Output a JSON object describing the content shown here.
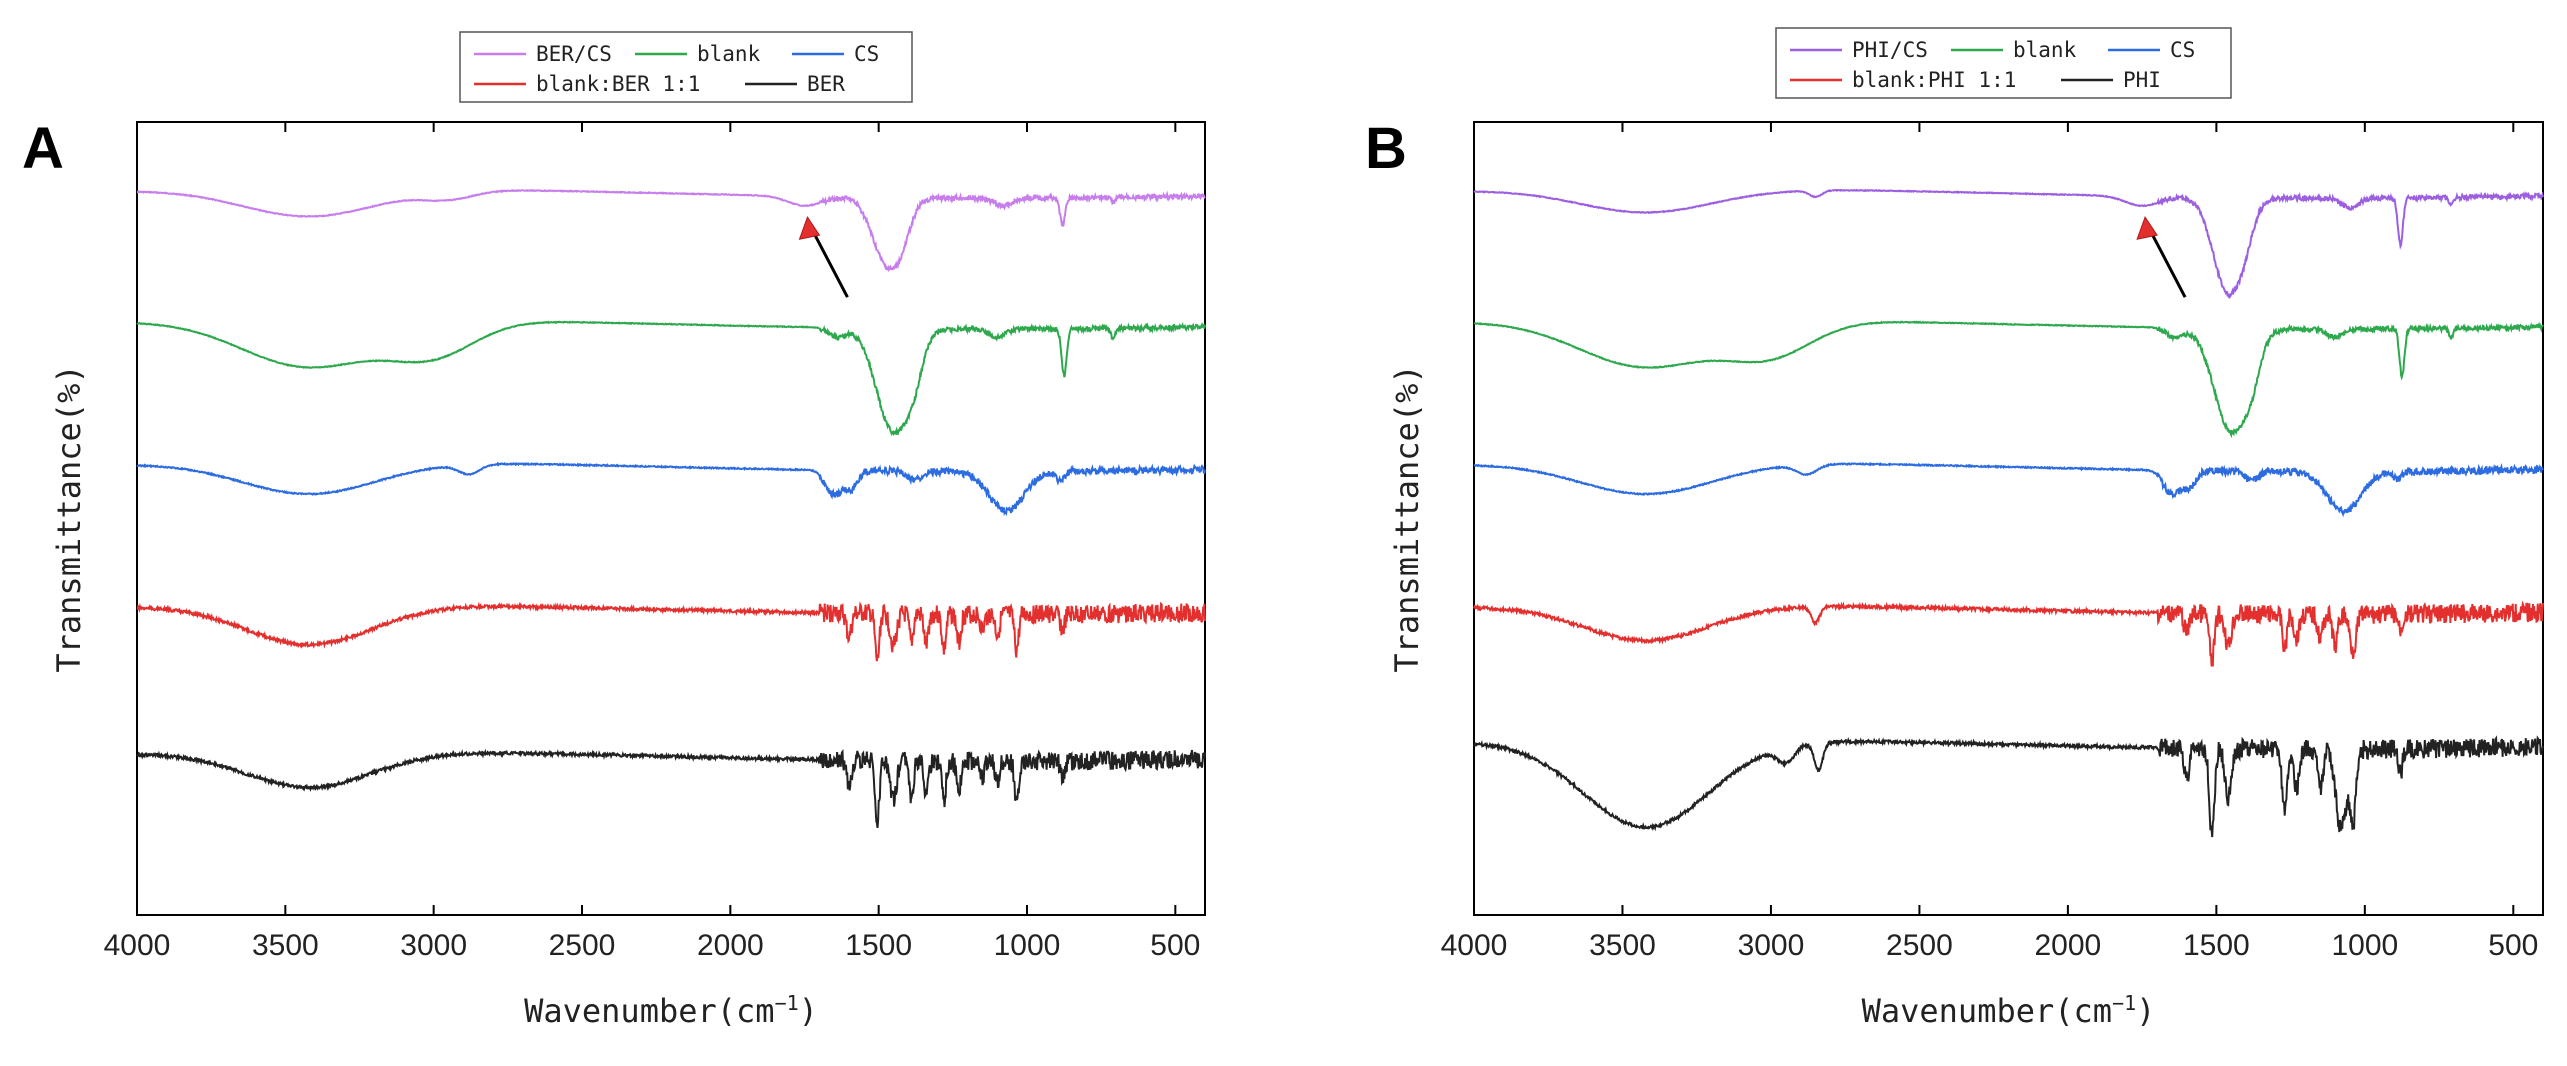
{
  "chart_data": [
    {
      "type": "line",
      "panel_label": "A",
      "xlabel": "Wavenumber",
      "xunit": "cm",
      "xunit_exp": "−1",
      "ylabel": "Transmittance(%)",
      "xlim": [
        4000,
        400
      ],
      "xticks": [
        4000,
        3500,
        3000,
        2500,
        2000,
        1500,
        1000,
        500
      ],
      "arrow_at_wavenumber": 1740,
      "legend_rows": [
        [
          "BER/CS",
          "blank",
          "CS"
        ],
        [
          "blank:BER 1:1",
          "BER"
        ]
      ],
      "series": [
        {
          "name": "BER/CS",
          "color": "#c77dec",
          "offset": 0.09,
          "peaks": [
            [
              3420,
              0.035,
              320
            ],
            [
              2950,
              0.01,
              120
            ],
            [
              1750,
              0.012,
              80
            ],
            [
              1470,
              0.085,
              70
            ],
            [
              1420,
              0.02,
              40
            ],
            [
              1080,
              0.01,
              40
            ],
            [
              880,
              0.035,
              12
            ],
            [
              710,
              0.006,
              10
            ]
          ],
          "noise": 0.001
        },
        {
          "name": "blank",
          "color": "#2ea84d",
          "offset": 0.255,
          "peaks": [
            [
              3420,
              0.06,
              320
            ],
            [
              3000,
              0.04,
              200
            ],
            [
              1640,
              0.012,
              40
            ],
            [
              1450,
              0.13,
              80
            ],
            [
              1380,
              0.03,
              40
            ],
            [
              1100,
              0.01,
              40
            ],
            [
              875,
              0.06,
              12
            ],
            [
              710,
              0.012,
              10
            ]
          ],
          "noise": 0.001
        },
        {
          "name": "CS",
          "color": "#2c6be0",
          "offset": 0.435,
          "peaks": [
            [
              3420,
              0.04,
              320
            ],
            [
              2880,
              0.012,
              50
            ],
            [
              1650,
              0.03,
              40
            ],
            [
              1590,
              0.02,
              30
            ],
            [
              1380,
              0.012,
              30
            ],
            [
              1070,
              0.05,
              80
            ],
            [
              890,
              0.01,
              20
            ]
          ],
          "noise": 0.0015
        },
        {
          "name": "blank:BER 1:1",
          "color": "#e3302f",
          "offset": 0.615,
          "peaks": [
            [
              3420,
              0.05,
              300
            ],
            [
              1600,
              0.03,
              12
            ],
            [
              1505,
              0.06,
              10
            ],
            [
              1450,
              0.04,
              15
            ],
            [
              1390,
              0.035,
              10
            ],
            [
              1340,
              0.04,
              10
            ],
            [
              1280,
              0.045,
              10
            ],
            [
              1230,
              0.035,
              10
            ],
            [
              1150,
              0.02,
              10
            ],
            [
              1100,
              0.025,
              10
            ],
            [
              1035,
              0.045,
              10
            ],
            [
              880,
              0.02,
              10
            ]
          ],
          "noise": 0.004
        },
        {
          "name": "BER",
          "color": "#222222",
          "offset": 0.8,
          "peaks": [
            [
              3420,
              0.045,
              300
            ],
            [
              1600,
              0.035,
              12
            ],
            [
              1505,
              0.08,
              10
            ],
            [
              1450,
              0.05,
              15
            ],
            [
              1390,
              0.045,
              10
            ],
            [
              1340,
              0.045,
              10
            ],
            [
              1280,
              0.05,
              10
            ],
            [
              1230,
              0.04,
              10
            ],
            [
              1150,
              0.02,
              10
            ],
            [
              1100,
              0.025,
              10
            ],
            [
              1035,
              0.05,
              10
            ],
            [
              880,
              0.02,
              10
            ]
          ],
          "noise": 0.004
        }
      ]
    },
    {
      "type": "line",
      "panel_label": "B",
      "xlabel": "Wavenumber",
      "xunit": "cm",
      "xunit_exp": "−1",
      "ylabel": "Transmittance(%)",
      "xlim": [
        4000,
        400
      ],
      "xticks": [
        4000,
        3500,
        3000,
        2500,
        2000,
        1500,
        1000,
        500
      ],
      "arrow_at_wavenumber": 1740,
      "legend_rows": [
        [
          "PHI/CS",
          "blank",
          "CS"
        ],
        [
          "blank:PHI 1:1",
          "PHI"
        ]
      ],
      "series": [
        {
          "name": "PHI/CS",
          "color": "#9b5fe0",
          "offset": 0.09,
          "peaks": [
            [
              3420,
              0.03,
              320
            ],
            [
              2850,
              0.008,
              30
            ],
            [
              1750,
              0.012,
              80
            ],
            [
              1460,
              0.12,
              70
            ],
            [
              1400,
              0.02,
              40
            ],
            [
              1050,
              0.012,
              40
            ],
            [
              880,
              0.06,
              12
            ],
            [
              710,
              0.008,
              10
            ]
          ],
          "noise": 0.001
        },
        {
          "name": "blank",
          "color": "#2ea84d",
          "offset": 0.255,
          "peaks": [
            [
              3420,
              0.06,
              320
            ],
            [
              3000,
              0.04,
              200
            ],
            [
              1640,
              0.012,
              40
            ],
            [
              1450,
              0.13,
              80
            ],
            [
              1380,
              0.03,
              40
            ],
            [
              1100,
              0.01,
              40
            ],
            [
              875,
              0.06,
              12
            ],
            [
              710,
              0.012,
              10
            ]
          ],
          "noise": 0.001
        },
        {
          "name": "CS",
          "color": "#2c6be0",
          "offset": 0.435,
          "peaks": [
            [
              3420,
              0.04,
              320
            ],
            [
              2880,
              0.012,
              50
            ],
            [
              1650,
              0.03,
              40
            ],
            [
              1590,
              0.02,
              30
            ],
            [
              1380,
              0.012,
              30
            ],
            [
              1070,
              0.05,
              80
            ],
            [
              890,
              0.01,
              20
            ]
          ],
          "noise": 0.0015
        },
        {
          "name": "blank:PHI 1:1",
          "color": "#e3302f",
          "offset": 0.615,
          "peaks": [
            [
              3420,
              0.045,
              300
            ],
            [
              2850,
              0.02,
              20
            ],
            [
              1600,
              0.025,
              12
            ],
            [
              1515,
              0.06,
              12
            ],
            [
              1460,
              0.04,
              15
            ],
            [
              1270,
              0.045,
              10
            ],
            [
              1230,
              0.03,
              12
            ],
            [
              1150,
              0.03,
              12
            ],
            [
              1100,
              0.04,
              12
            ],
            [
              1040,
              0.045,
              15
            ],
            [
              880,
              0.02,
              10
            ]
          ],
          "noise": 0.004
        },
        {
          "name": "PHI",
          "color": "#222222",
          "offset": 0.785,
          "peaks": [
            [
              3420,
              0.11,
              300
            ],
            [
              2950,
              0.02,
              40
            ],
            [
              2840,
              0.035,
              20
            ],
            [
              1600,
              0.04,
              12
            ],
            [
              1515,
              0.11,
              12
            ],
            [
              1460,
              0.06,
              15
            ],
            [
              1270,
              0.08,
              12
            ],
            [
              1230,
              0.05,
              12
            ],
            [
              1150,
              0.05,
              12
            ],
            [
              1080,
              0.1,
              25
            ],
            [
              1040,
              0.09,
              15
            ],
            [
              880,
              0.03,
              10
            ]
          ],
          "noise": 0.004
        }
      ]
    }
  ]
}
